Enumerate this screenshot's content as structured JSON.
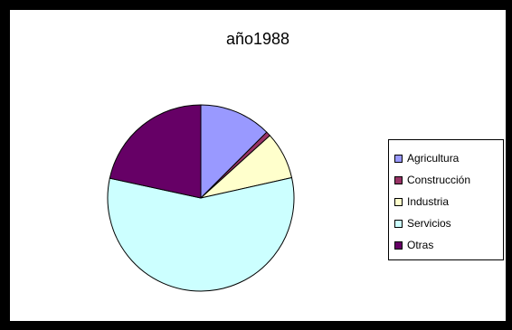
{
  "chart_data": {
    "type": "pie",
    "title": "año1988",
    "categories": [
      "Agricultura",
      "Construcción",
      "Industria",
      "Servicios",
      "Otras"
    ],
    "values": [
      12.5,
      0.8,
      8.2,
      56.9,
      21.6
    ],
    "colors": [
      "#9999ff",
      "#993366",
      "#ffffcc",
      "#ccffff",
      "#660066"
    ],
    "legend_position": "right"
  }
}
